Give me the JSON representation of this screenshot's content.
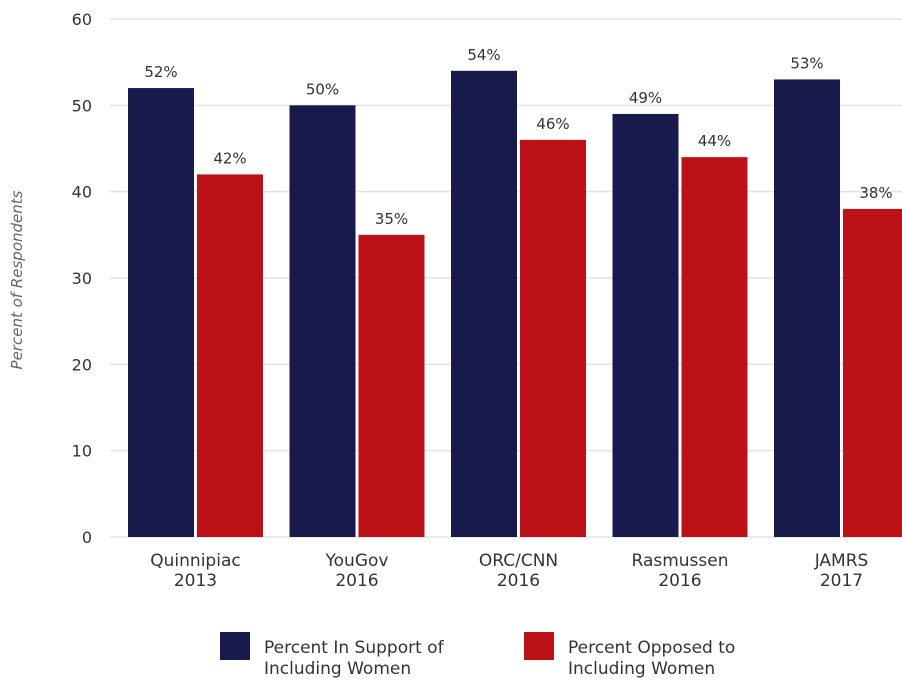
{
  "chart_data": {
    "type": "bar",
    "title": "",
    "xlabel": "",
    "ylabel": "Percent of Respondents",
    "ylim": [
      0,
      60
    ],
    "yticks": [
      0,
      10,
      20,
      30,
      40,
      50,
      60
    ],
    "grid": true,
    "legend_position": "bottom",
    "categories": [
      [
        "Quinnipiac",
        "2013"
      ],
      [
        "YouGov",
        "2016"
      ],
      [
        "ORC/CNN",
        "2016"
      ],
      [
        "Rasmussen",
        "2016"
      ],
      [
        "JAMRS",
        "2017"
      ]
    ],
    "series": [
      {
        "name": [
          "Percent In Support of",
          "Including Women"
        ],
        "color": "#181a4b",
        "values": [
          52,
          50,
          54,
          49,
          53
        ],
        "labels": [
          "52%",
          "50%",
          "54%",
          "49%",
          "53%"
        ]
      },
      {
        "name": [
          "Percent Opposed to",
          "Including Women"
        ],
        "color": "#bd1118",
        "values": [
          42,
          35,
          46,
          44,
          38
        ],
        "labels": [
          "42%",
          "35%",
          "46%",
          "44%",
          "38%"
        ]
      }
    ]
  }
}
